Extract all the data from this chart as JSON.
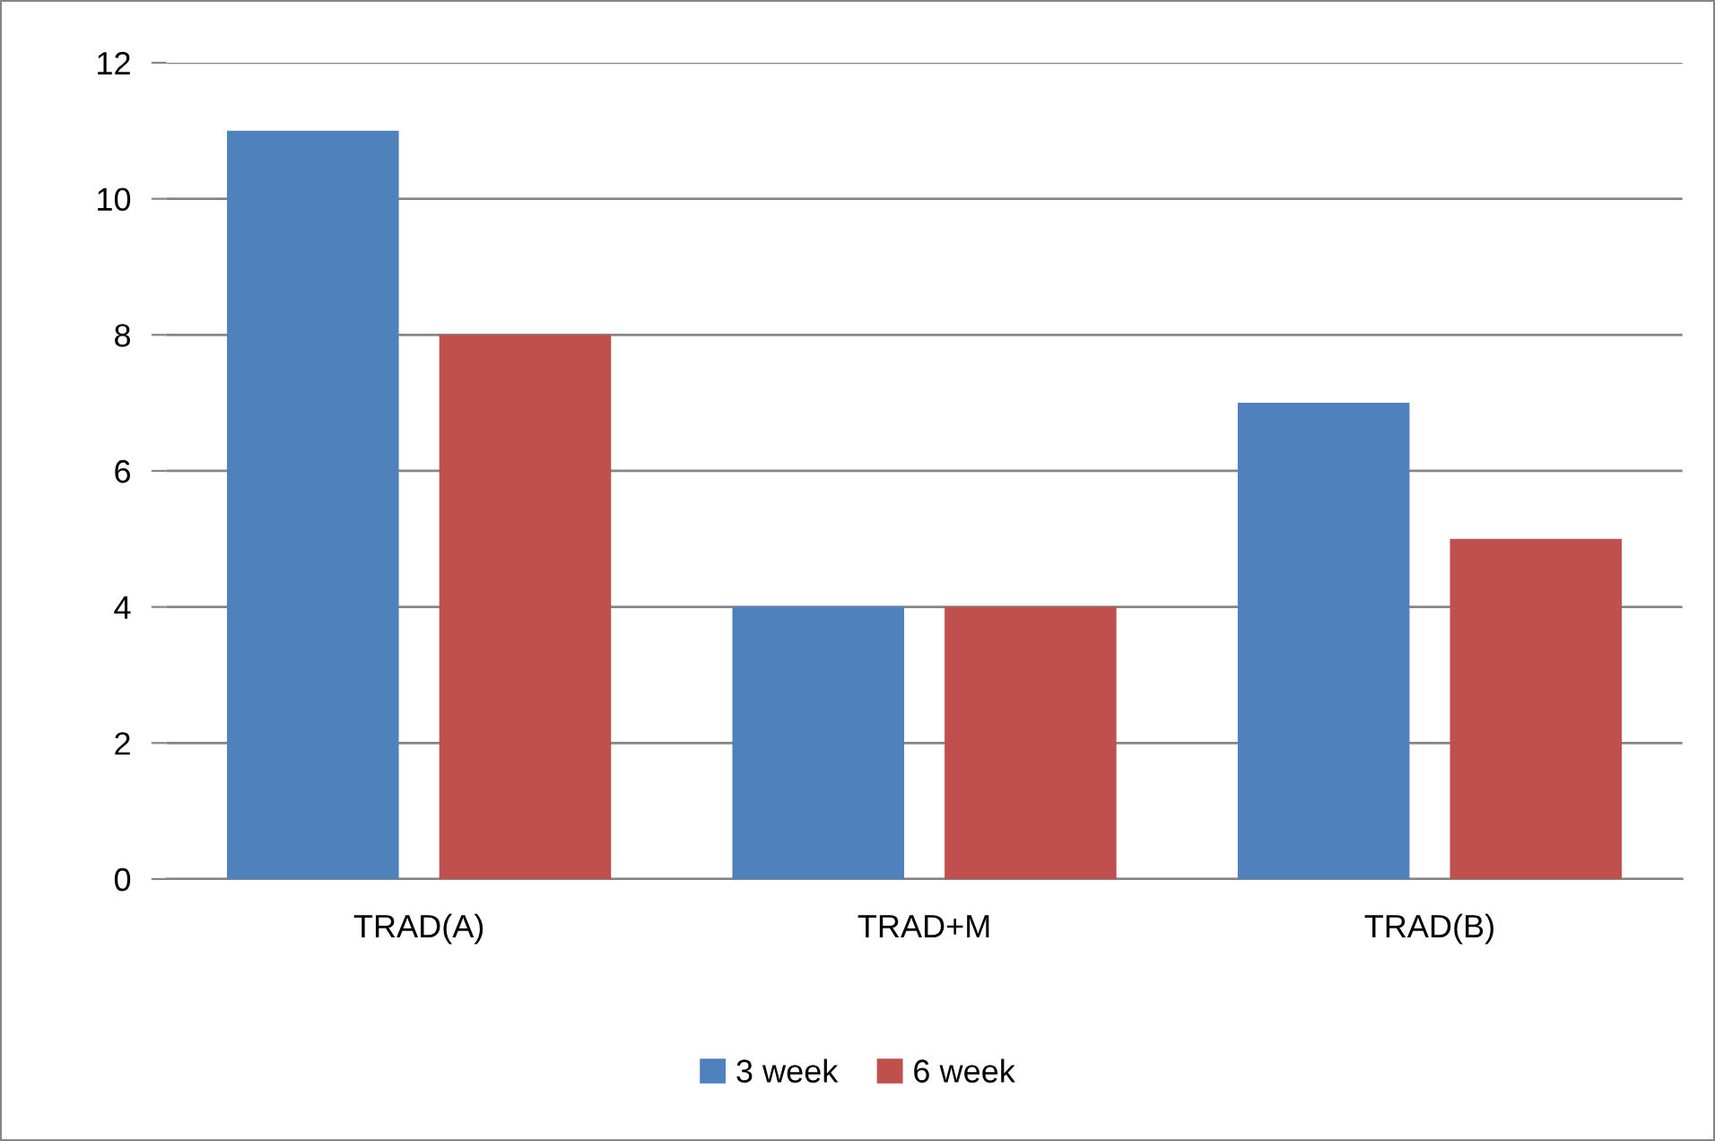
{
  "chart_data": {
    "type": "bar",
    "categories": [
      "TRAD(A)",
      "TRAD+M",
      "TRAD(B)"
    ],
    "series": [
      {
        "name": "3 week",
        "color": "#4f81bd",
        "values": [
          11,
          4,
          7
        ]
      },
      {
        "name": "6 week",
        "color": "#c0504d",
        "values": [
          8,
          4,
          5
        ]
      }
    ],
    "ylim": [
      0,
      12
    ],
    "yticks": [
      0,
      2,
      4,
      6,
      8,
      10,
      12
    ],
    "grid": "y",
    "legend": "bottom"
  }
}
